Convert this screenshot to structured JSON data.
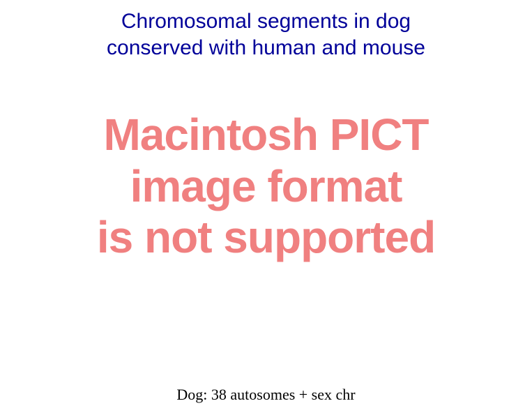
{
  "slide": {
    "title_line1": "Chromosomal segments in dog",
    "title_line2": "conserved with human and mouse",
    "title_color": "#000099",
    "title_fontsize": 30,
    "title_fontfamily": "Arial, Helvetica, sans-serif",
    "error": {
      "line1": "Macintosh PICT",
      "line2": "image format",
      "line3": "is not supported",
      "text_color": "#f08080",
      "fontsize": 64,
      "fontweight": "bold",
      "fontfamily": "Arial, Helvetica, sans-serif"
    },
    "caption": "Dog: 38 autosomes + sex chr",
    "caption_color": "#000000",
    "caption_fontsize": 22,
    "caption_fontfamily": "\"Times New Roman\", Times, serif",
    "background_color": "#ffffff"
  }
}
